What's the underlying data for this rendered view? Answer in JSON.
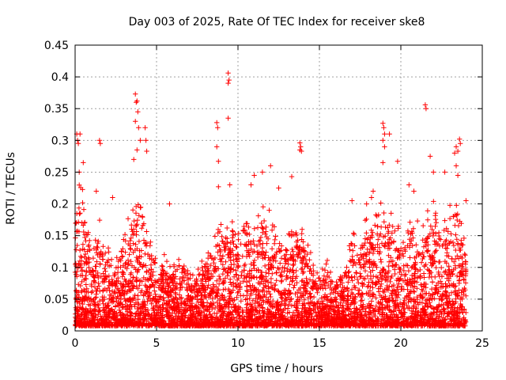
{
  "chart_data": {
    "type": "scatter",
    "title": "Day 003 of 2025, Rate Of TEC Index for receiver ske8",
    "xlabel": "GPS time / hours",
    "ylabel": "ROTI / TECUs",
    "xlim": [
      0,
      25
    ],
    "ylim": [
      0,
      0.45
    ],
    "xticks": [
      0,
      5,
      10,
      15,
      20,
      25
    ],
    "yticks": [
      0,
      0.05,
      0.1,
      0.15,
      0.2,
      0.25,
      0.3,
      0.35,
      0.4,
      0.45
    ],
    "grid": true,
    "marker": "plus",
    "colors": {
      "points": "#ff0000",
      "grid": "#a0a0a0",
      "axes": "#000000"
    },
    "activity_envelope": {
      "description_x_hours": [
        0,
        0.25,
        0.5,
        1,
        1.5,
        2,
        2.5,
        3,
        3.5,
        3.8,
        4,
        4.5,
        5,
        5.5,
        6,
        6.5,
        7,
        7.5,
        8,
        8.5,
        9,
        9.5,
        10,
        10.5,
        11,
        11.5,
        12,
        12.5,
        13,
        13.5,
        14,
        14.5,
        15,
        15.5,
        16,
        16.5,
        17,
        17.5,
        18,
        18.5,
        19,
        19.5,
        20,
        20.5,
        21,
        21.5,
        22,
        22.5,
        23,
        23.5,
        24
      ],
      "typical_max_roti": [
        0.2,
        0.22,
        0.18,
        0.12,
        0.14,
        0.11,
        0.1,
        0.13,
        0.16,
        0.2,
        0.18,
        0.15,
        0.09,
        0.1,
        0.08,
        0.1,
        0.07,
        0.08,
        0.1,
        0.12,
        0.15,
        0.17,
        0.13,
        0.16,
        0.15,
        0.17,
        0.16,
        0.14,
        0.12,
        0.15,
        0.14,
        0.1,
        0.08,
        0.09,
        0.07,
        0.08,
        0.13,
        0.12,
        0.16,
        0.18,
        0.17,
        0.15,
        0.13,
        0.14,
        0.15,
        0.16,
        0.18,
        0.14,
        0.16,
        0.17,
        0.12
      ]
    },
    "notable_points": [
      {
        "x": 0.1,
        "y": 0.31
      },
      {
        "x": 0.15,
        "y": 0.3
      },
      {
        "x": 0.2,
        "y": 0.295
      },
      {
        "x": 0.3,
        "y": 0.31
      },
      {
        "x": 0.25,
        "y": 0.25
      },
      {
        "x": 0.5,
        "y": 0.265
      },
      {
        "x": 1.5,
        "y": 0.3
      },
      {
        "x": 1.55,
        "y": 0.295
      },
      {
        "x": 3.7,
        "y": 0.373
      },
      {
        "x": 3.75,
        "y": 0.36
      },
      {
        "x": 3.8,
        "y": 0.362
      },
      {
        "x": 3.85,
        "y": 0.345
      },
      {
        "x": 3.7,
        "y": 0.33
      },
      {
        "x": 3.9,
        "y": 0.32
      },
      {
        "x": 4.0,
        "y": 0.3
      },
      {
        "x": 3.8,
        "y": 0.285
      },
      {
        "x": 4.3,
        "y": 0.32
      },
      {
        "x": 4.35,
        "y": 0.3
      },
      {
        "x": 4.4,
        "y": 0.283
      },
      {
        "x": 3.6,
        "y": 0.27
      },
      {
        "x": 8.7,
        "y": 0.328
      },
      {
        "x": 8.75,
        "y": 0.32
      },
      {
        "x": 8.7,
        "y": 0.29
      },
      {
        "x": 8.8,
        "y": 0.267
      },
      {
        "x": 8.8,
        "y": 0.227
      },
      {
        "x": 9.4,
        "y": 0.406
      },
      {
        "x": 9.45,
        "y": 0.395
      },
      {
        "x": 9.4,
        "y": 0.39
      },
      {
        "x": 9.4,
        "y": 0.335
      },
      {
        "x": 9.5,
        "y": 0.23
      },
      {
        "x": 13.8,
        "y": 0.296
      },
      {
        "x": 13.85,
        "y": 0.29
      },
      {
        "x": 13.8,
        "y": 0.285
      },
      {
        "x": 13.9,
        "y": 0.283
      },
      {
        "x": 13.3,
        "y": 0.243
      },
      {
        "x": 18.9,
        "y": 0.327
      },
      {
        "x": 18.95,
        "y": 0.32
      },
      {
        "x": 19.0,
        "y": 0.31
      },
      {
        "x": 18.9,
        "y": 0.3
      },
      {
        "x": 19.0,
        "y": 0.29
      },
      {
        "x": 18.9,
        "y": 0.265
      },
      {
        "x": 19.3,
        "y": 0.31
      },
      {
        "x": 19.8,
        "y": 0.267
      },
      {
        "x": 21.5,
        "y": 0.356
      },
      {
        "x": 21.55,
        "y": 0.35
      },
      {
        "x": 23.4,
        "y": 0.29
      },
      {
        "x": 23.5,
        "y": 0.283
      },
      {
        "x": 23.6,
        "y": 0.302
      },
      {
        "x": 23.65,
        "y": 0.295
      },
      {
        "x": 23.3,
        "y": 0.28
      },
      {
        "x": 23.4,
        "y": 0.26
      },
      {
        "x": 23.5,
        "y": 0.245
      },
      {
        "x": 22.7,
        "y": 0.25
      },
      {
        "x": 22.0,
        "y": 0.25
      },
      {
        "x": 21.8,
        "y": 0.275
      },
      {
        "x": 20.5,
        "y": 0.23
      },
      {
        "x": 20.8,
        "y": 0.22
      },
      {
        "x": 12.0,
        "y": 0.26
      },
      {
        "x": 11.5,
        "y": 0.25
      },
      {
        "x": 11.0,
        "y": 0.245
      },
      {
        "x": 10.8,
        "y": 0.23
      },
      {
        "x": 12.5,
        "y": 0.225
      },
      {
        "x": 17.9,
        "y": 0.2
      },
      {
        "x": 18.2,
        "y": 0.21
      },
      {
        "x": 18.3,
        "y": 0.22
      },
      {
        "x": 17.0,
        "y": 0.205
      },
      {
        "x": 2.3,
        "y": 0.21
      },
      {
        "x": 1.3,
        "y": 0.22
      },
      {
        "x": 5.8,
        "y": 0.2
      },
      {
        "x": 24.0,
        "y": 0.205
      }
    ]
  }
}
